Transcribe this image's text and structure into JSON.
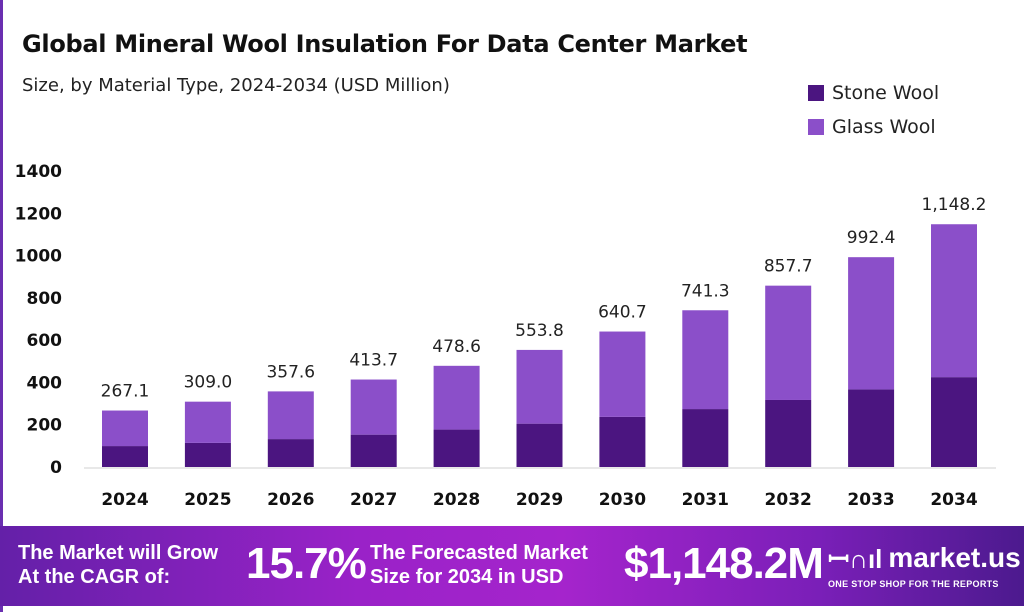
{
  "chart_data": {
    "type": "bar",
    "stacked": true,
    "title": "Global Mineral Wool Insulation For Data Center Market",
    "subtitle": "Size, by Material Type, 2024-2034 (USD Million)",
    "categories": [
      "2024",
      "2025",
      "2026",
      "2027",
      "2028",
      "2029",
      "2030",
      "2031",
      "2032",
      "2033",
      "2034"
    ],
    "series": [
      {
        "name": "Stone Wool",
        "color": "#4b1580",
        "values": [
          99,
          114,
          132,
          153,
          177,
          205,
          237,
          274,
          317,
          367,
          425
        ]
      },
      {
        "name": "Glass Wool",
        "color": "#8b4fc9",
        "values": [
          168.1,
          195.0,
          225.6,
          260.7,
          301.6,
          348.8,
          403.7,
          467.3,
          540.7,
          625.4,
          723.2
        ]
      }
    ],
    "totals_labels": [
      "267.1",
      "309.0",
      "357.6",
      "413.7",
      "478.6",
      "553.8",
      "640.7",
      "741.3",
      "857.7",
      "992.4",
      "1,148.2"
    ],
    "totals": [
      267.1,
      309.0,
      357.6,
      413.7,
      478.6,
      553.8,
      640.7,
      741.3,
      857.7,
      992.4,
      1148.2
    ],
    "ylim": [
      0,
      1400
    ],
    "yticks": [
      "0",
      "200",
      "400",
      "600",
      "800",
      "1000",
      "1200",
      "1400"
    ],
    "grid": false,
    "legend": "top-right"
  },
  "banner": {
    "cagr_label_1": "The Market will Grow",
    "cagr_label_2": "At the CAGR of:",
    "cagr_value": "15.7%",
    "forecast_label_1": "The Forecasted Market",
    "forecast_label_2": "Size for 2034 in USD",
    "forecast_value": "$1,148.2M",
    "brand": "market.us",
    "brand_tagline": "ONE STOP SHOP FOR THE REPORTS"
  }
}
